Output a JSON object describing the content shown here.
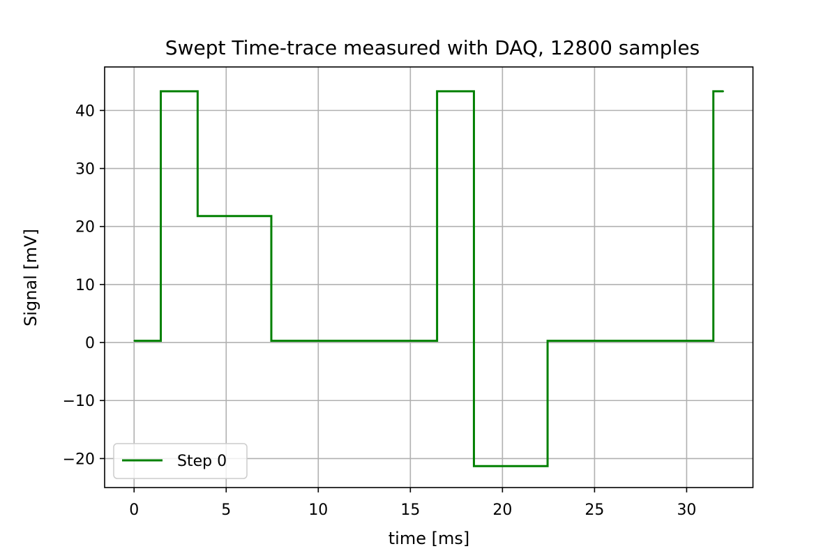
{
  "chart_data": {
    "type": "line",
    "title": "Swept Time-trace measured with DAQ,  12800 samples",
    "xlabel": "time  [ms]",
    "ylabel": "Signal  [mV]",
    "xlim": [
      -1.6,
      33.6
    ],
    "ylim": [
      -25,
      47.5
    ],
    "xticks": [
      0,
      5,
      10,
      15,
      20,
      25,
      30
    ],
    "xtick_labels": [
      "0",
      "5",
      "10",
      "15",
      "20",
      "25",
      "30"
    ],
    "yticks": [
      -20,
      -10,
      0,
      10,
      20,
      30,
      40
    ],
    "ytick_labels": [
      "−20",
      "−10",
      "0",
      "10",
      "20",
      "30",
      "40"
    ],
    "grid": true,
    "legend_position": "lower-left",
    "series": [
      {
        "name": "Step 0",
        "color": "#008000",
        "x": [
          0,
          1.45,
          1.45,
          3.45,
          3.45,
          7.45,
          7.45,
          16.45,
          16.45,
          18.45,
          18.45,
          22.45,
          22.45,
          31.45,
          31.45,
          32.0
        ],
        "y": [
          0.3,
          0.3,
          43.3,
          43.3,
          21.8,
          21.8,
          0.3,
          0.3,
          43.3,
          43.3,
          -21.3,
          -21.3,
          0.3,
          0.3,
          43.3,
          43.3
        ]
      }
    ]
  }
}
